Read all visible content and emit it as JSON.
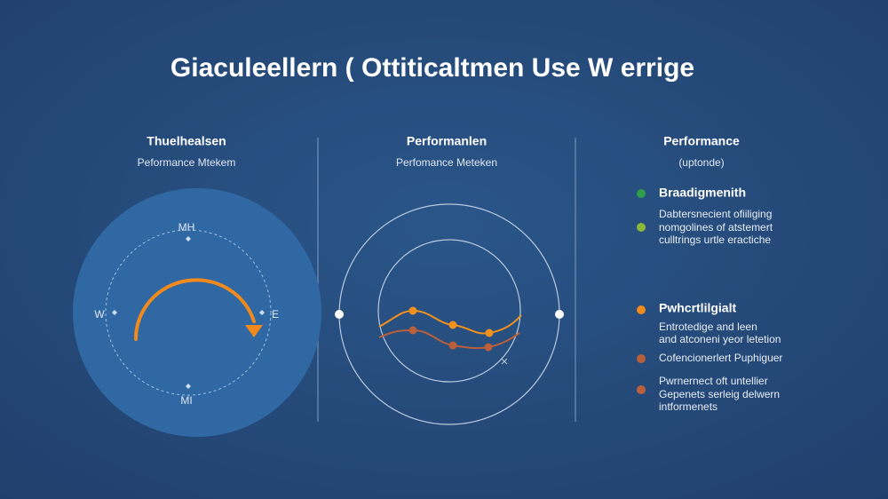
{
  "title": "Giaculeellern ( Ottiticaltmen Use W errige",
  "panels": [
    {
      "heading": "Thuelhealsen",
      "subheading": "Peformance Mtekem",
      "compass": {
        "north": "MH",
        "west": "W",
        "east": "E",
        "south": "MI"
      }
    },
    {
      "heading": "Performanlen",
      "subheading": "Perfomance Meteken"
    },
    {
      "heading": "Performance",
      "subheading": "(uptonde)",
      "legend": [
        {
          "title": "Braadigmenith",
          "items": [
            {
              "lines": [
                "Dabtersnecient ofiiliging",
                "nomgolines of atstemert",
                "culltrings urtle eractiche"
              ]
            }
          ]
        },
        {
          "title": "Pwhcrtlilgialt",
          "items": [
            {
              "lines": [
                "Entrotedige and leen",
                "and atconeni yeor letetion"
              ]
            },
            {
              "lines": [
                "Cofencionerlert Puphiguer"
              ]
            },
            {
              "lines": [
                "Pwrnernect oft untellier",
                "Gepenets serleig delwern",
                "intformenets"
              ]
            }
          ]
        }
      ]
    }
  ]
}
